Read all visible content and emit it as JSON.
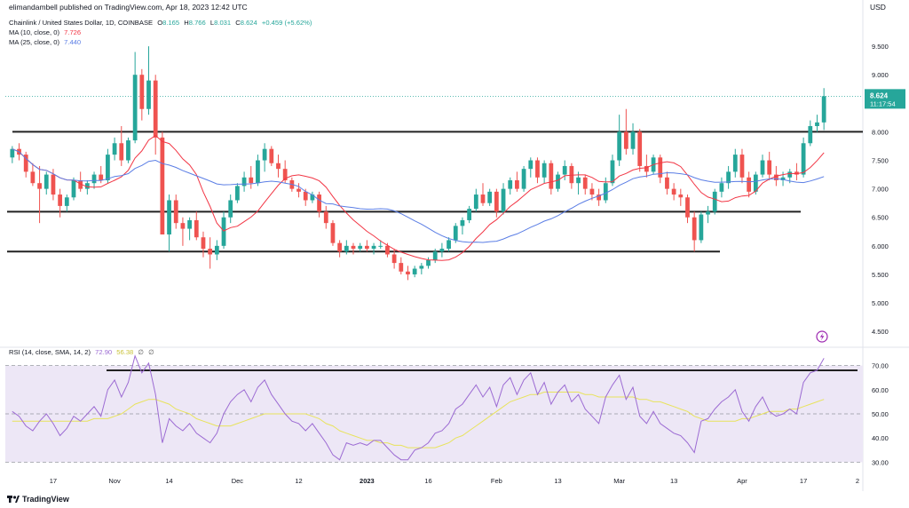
{
  "header": {
    "author_text": "elimandambell published on TradingView.com, Apr 18, 2023 12:42 UTC",
    "currency": "USD"
  },
  "legend": {
    "symbol": "Chainlink / United States Dollar, 1D, COINBASE",
    "o_label": "O",
    "o": "8.165",
    "h_label": "H",
    "h": "8.766",
    "l_label": "L",
    "l": "8.031",
    "c_label": "C",
    "c": "8.624",
    "change": "+0.459 (+5.62%)",
    "ma10_label": "MA (10, close, 0)",
    "ma10_value": "7.726",
    "ma25_label": "MA (25, close, 0)",
    "ma25_value": "7.440"
  },
  "price_badge": {
    "price": "8.624",
    "countdown": "11:17:54"
  },
  "rsi_legend": {
    "label": "RSI (14, close, SMA, 14, 2)",
    "rsi": "72.90",
    "sma": "56.38",
    "extra1": "∅",
    "extra2": "∅"
  },
  "footer": {
    "brand": "TradingView"
  },
  "colors": {
    "up": "#26a69a",
    "down": "#ef5350",
    "ma10": "#f23645",
    "ma25": "#5b7ee5",
    "rsi": "#9c6bd3",
    "rsi_sma": "#e8e35c",
    "rsi_band": "#ede7f6",
    "level_line": "#222222"
  },
  "icons": {
    "footer_logo": "tradingview-logo-icon",
    "alert": "flash-icon"
  },
  "chart_data": [
    {
      "type": "candlestick",
      "title": "Chainlink / United States Dollar, 1D, COINBASE",
      "ylim": [
        4.3,
        10.0
      ],
      "y_ticks": [
        "9.500",
        "9.000",
        "8.000",
        "7.500",
        "7.000",
        "6.500",
        "6.000",
        "5.500",
        "5.000",
        "4.500"
      ],
      "x_ticks": [
        "17",
        "Nov",
        "14",
        "Dec",
        "12",
        "2023",
        "16",
        "Feb",
        "13",
        "Mar",
        "13",
        "Apr",
        "17",
        "2"
      ],
      "last_price": 8.624,
      "horizontal_levels": [
        8.0,
        6.6,
        5.9
      ],
      "series": [
        {
          "name": "LINK/USD",
          "ohlc": [
            [
              7.55,
              7.75,
              7.45,
              7.7
            ],
            [
              7.7,
              7.8,
              7.5,
              7.6
            ],
            [
              7.6,
              7.65,
              7.2,
              7.3
            ],
            [
              7.3,
              7.45,
              7.05,
              7.1
            ],
            [
              7.1,
              7.4,
              6.4,
              7.0
            ],
            [
              7.0,
              7.3,
              6.9,
              7.25
            ],
            [
              7.25,
              7.35,
              6.8,
              6.9
            ],
            [
              6.9,
              7.0,
              6.5,
              6.7
            ],
            [
              6.7,
              6.9,
              6.6,
              6.85
            ],
            [
              6.85,
              7.2,
              6.8,
              7.15
            ],
            [
              7.15,
              7.3,
              6.95,
              7.0
            ],
            [
              7.0,
              7.15,
              6.9,
              7.1
            ],
            [
              7.1,
              7.3,
              7.0,
              7.25
            ],
            [
              7.25,
              7.4,
              7.1,
              7.15
            ],
            [
              7.15,
              7.7,
              7.1,
              7.6
            ],
            [
              7.6,
              7.9,
              7.5,
              7.8
            ],
            [
              7.8,
              8.1,
              7.4,
              7.5
            ],
            [
              7.5,
              7.9,
              7.45,
              7.85
            ],
            [
              7.85,
              9.4,
              7.8,
              9.0
            ],
            [
              9.0,
              9.1,
              8.2,
              8.4
            ],
            [
              8.4,
              9.5,
              8.3,
              8.9
            ],
            [
              8.9,
              9.0,
              7.6,
              7.9
            ],
            [
              7.9,
              8.0,
              6.2,
              6.2
            ],
            [
              6.2,
              6.9,
              5.9,
              6.8
            ],
            [
              6.8,
              6.9,
              6.3,
              6.4
            ],
            [
              6.4,
              6.5,
              6.0,
              6.3
            ],
            [
              6.3,
              6.5,
              6.1,
              6.45
            ],
            [
              6.45,
              6.6,
              6.1,
              6.15
            ],
            [
              6.15,
              6.25,
              5.8,
              5.95
            ],
            [
              5.95,
              6.15,
              5.6,
              5.85
            ],
            [
              5.85,
              6.1,
              5.75,
              6.0
            ],
            [
              6.0,
              6.6,
              5.95,
              6.5
            ],
            [
              6.5,
              6.9,
              6.4,
              6.8
            ],
            [
              6.8,
              7.1,
              6.75,
              7.05
            ],
            [
              7.05,
              7.3,
              6.95,
              7.2
            ],
            [
              7.2,
              7.4,
              7.0,
              7.1
            ],
            [
              7.1,
              7.6,
              7.05,
              7.5
            ],
            [
              7.5,
              7.8,
              7.3,
              7.7
            ],
            [
              7.7,
              7.75,
              7.4,
              7.45
            ],
            [
              7.45,
              7.6,
              7.2,
              7.35
            ],
            [
              7.35,
              7.5,
              7.1,
              7.15
            ],
            [
              7.15,
              7.2,
              6.95,
              7.0
            ],
            [
              7.0,
              7.1,
              6.85,
              6.95
            ],
            [
              6.95,
              7.0,
              6.7,
              6.8
            ],
            [
              6.8,
              6.95,
              6.75,
              6.9
            ],
            [
              6.9,
              6.95,
              6.5,
              6.6
            ],
            [
              6.6,
              6.7,
              6.3,
              6.4
            ],
            [
              6.4,
              6.45,
              6.0,
              6.05
            ],
            [
              6.05,
              6.1,
              5.8,
              5.9
            ],
            [
              5.9,
              6.1,
              5.85,
              6.0
            ],
            [
              6.0,
              6.05,
              5.85,
              5.95
            ],
            [
              5.95,
              6.05,
              5.9,
              6.0
            ],
            [
              6.0,
              6.1,
              5.9,
              5.95
            ],
            [
              5.95,
              6.05,
              5.85,
              6.0
            ],
            [
              6.0,
              6.1,
              5.95,
              6.0
            ],
            [
              6.0,
              6.05,
              5.8,
              5.85
            ],
            [
              5.85,
              5.95,
              5.6,
              5.7
            ],
            [
              5.7,
              5.8,
              5.5,
              5.55
            ],
            [
              5.55,
              5.65,
              5.4,
              5.5
            ],
            [
              5.5,
              5.65,
              5.45,
              5.6
            ],
            [
              5.6,
              5.7,
              5.5,
              5.65
            ],
            [
              5.65,
              5.8,
              5.6,
              5.75
            ],
            [
              5.75,
              5.95,
              5.7,
              5.9
            ],
            [
              5.9,
              6.05,
              5.8,
              5.95
            ],
            [
              5.95,
              6.15,
              5.9,
              6.1
            ],
            [
              6.1,
              6.4,
              6.05,
              6.35
            ],
            [
              6.35,
              6.5,
              6.2,
              6.45
            ],
            [
              6.45,
              6.7,
              6.4,
              6.65
            ],
            [
              6.65,
              7.0,
              6.6,
              6.9
            ],
            [
              6.9,
              7.1,
              6.7,
              6.75
            ],
            [
              6.75,
              7.0,
              6.7,
              6.95
            ],
            [
              6.95,
              7.0,
              6.5,
              6.6
            ],
            [
              6.6,
              7.1,
              6.55,
              7.0
            ],
            [
              7.0,
              7.2,
              6.9,
              7.15
            ],
            [
              7.15,
              7.3,
              6.95,
              7.0
            ],
            [
              7.0,
              7.4,
              6.95,
              7.35
            ],
            [
              7.35,
              7.55,
              7.2,
              7.5
            ],
            [
              7.5,
              7.55,
              7.1,
              7.2
            ],
            [
              7.2,
              7.5,
              7.1,
              7.45
            ],
            [
              7.45,
              7.5,
              6.9,
              7.0
            ],
            [
              7.0,
              7.3,
              6.95,
              7.25
            ],
            [
              7.25,
              7.5,
              7.15,
              7.4
            ],
            [
              7.4,
              7.45,
              7.0,
              7.1
            ],
            [
              7.1,
              7.3,
              6.9,
              7.2
            ],
            [
              7.2,
              7.25,
              6.9,
              7.0
            ],
            [
              7.0,
              7.1,
              6.8,
              6.9
            ],
            [
              6.9,
              7.0,
              6.7,
              6.8
            ],
            [
              6.8,
              7.2,
              6.75,
              7.1
            ],
            [
              7.1,
              7.6,
              7.05,
              7.5
            ],
            [
              7.5,
              8.3,
              7.4,
              8.0
            ],
            [
              8.0,
              8.4,
              7.6,
              7.7
            ],
            [
              7.7,
              8.15,
              7.6,
              8.0
            ],
            [
              8.0,
              8.05,
              7.3,
              7.4
            ],
            [
              7.4,
              7.6,
              7.2,
              7.3
            ],
            [
              7.3,
              7.6,
              7.25,
              7.55
            ],
            [
              7.55,
              7.6,
              7.1,
              7.2
            ],
            [
              7.2,
              7.3,
              6.9,
              7.0
            ],
            [
              7.0,
              7.1,
              6.8,
              6.9
            ],
            [
              6.9,
              7.0,
              6.7,
              6.85
            ],
            [
              6.85,
              6.9,
              6.4,
              6.5
            ],
            [
              6.5,
              6.6,
              5.9,
              6.1
            ],
            [
              6.1,
              6.6,
              6.05,
              6.55
            ],
            [
              6.55,
              6.7,
              6.4,
              6.6
            ],
            [
              6.6,
              7.0,
              6.55,
              6.95
            ],
            [
              6.95,
              7.2,
              6.85,
              7.1
            ],
            [
              7.1,
              7.4,
              7.0,
              7.3
            ],
            [
              7.3,
              7.7,
              7.2,
              7.6
            ],
            [
              7.6,
              7.7,
              7.1,
              7.2
            ],
            [
              7.2,
              7.3,
              6.85,
              6.95
            ],
            [
              6.95,
              7.3,
              6.9,
              7.25
            ],
            [
              7.25,
              7.6,
              7.2,
              7.5
            ],
            [
              7.5,
              7.65,
              7.15,
              7.25
            ],
            [
              7.25,
              7.4,
              7.05,
              7.15
            ],
            [
              7.15,
              7.3,
              7.05,
              7.2
            ],
            [
              7.2,
              7.35,
              7.1,
              7.3
            ],
            [
              7.3,
              7.45,
              7.15,
              7.25
            ],
            [
              7.25,
              7.9,
              7.2,
              7.8
            ],
            [
              7.8,
              8.2,
              7.75,
              8.1
            ],
            [
              8.1,
              8.3,
              8.0,
              8.165
            ],
            [
              8.165,
              8.766,
              8.031,
              8.624
            ]
          ]
        }
      ],
      "overlays": [
        {
          "name": "MA (10, close, 0)",
          "period": 10
        },
        {
          "name": "MA (25, close, 0)",
          "period": 25
        }
      ]
    },
    {
      "type": "line",
      "title": "RSI (14, close, SMA, 14, 2)",
      "ylim": [
        25,
        75
      ],
      "y_ticks": [
        "70.00",
        "60.00",
        "50.00",
        "40.00",
        "30.00"
      ],
      "bands": [
        30,
        50,
        70
      ],
      "horizontal_levels": [
        68
      ],
      "series": [
        {
          "name": "RSI",
          "values": [
            51,
            49,
            45,
            43,
            47,
            50,
            46,
            41,
            44,
            49,
            47,
            50,
            53,
            49,
            60,
            64,
            57,
            63,
            74,
            67,
            71,
            58,
            38,
            48,
            45,
            43,
            46,
            42,
            40,
            38,
            42,
            50,
            55,
            58,
            60,
            55,
            61,
            64,
            58,
            54,
            50,
            47,
            46,
            43,
            46,
            42,
            38,
            33,
            31,
            38,
            37,
            38,
            37,
            39,
            39,
            36,
            33,
            31,
            31,
            35,
            36,
            38,
            42,
            43,
            46,
            52,
            54,
            58,
            62,
            57,
            61,
            53,
            62,
            65,
            58,
            64,
            67,
            58,
            63,
            54,
            59,
            62,
            55,
            58,
            52,
            49,
            46,
            57,
            62,
            66,
            56,
            61,
            49,
            46,
            51,
            46,
            44,
            42,
            41,
            38,
            34,
            47,
            48,
            52,
            55,
            57,
            60,
            51,
            47,
            53,
            57,
            51,
            49,
            50,
            52,
            50,
            63,
            67,
            68,
            73
          ]
        },
        {
          "name": "RSI SMA",
          "values": [
            47,
            47,
            47,
            47,
            47,
            47,
            47,
            47,
            47,
            47,
            47,
            47,
            48,
            48,
            48,
            49,
            50,
            52,
            54,
            55,
            56,
            56,
            55,
            54,
            52,
            51,
            50,
            48,
            47,
            46,
            45,
            45,
            45,
            46,
            47,
            48,
            49,
            50,
            50,
            50,
            50,
            50,
            50,
            50,
            49,
            48,
            46,
            45,
            43,
            42,
            41,
            40,
            39,
            39,
            38,
            38,
            37,
            37,
            36,
            36,
            36,
            36,
            36,
            37,
            38,
            40,
            41,
            43,
            45,
            47,
            49,
            51,
            53,
            55,
            56,
            57,
            58,
            58,
            59,
            59,
            59,
            59,
            59,
            59,
            58,
            58,
            57,
            57,
            57,
            57,
            57,
            57,
            56,
            56,
            55,
            55,
            54,
            53,
            52,
            51,
            49,
            48,
            47,
            47,
            47,
            47,
            47,
            48,
            48,
            49,
            50,
            51,
            51,
            51,
            52,
            52,
            53,
            54,
            55,
            56
          ]
        }
      ]
    }
  ]
}
